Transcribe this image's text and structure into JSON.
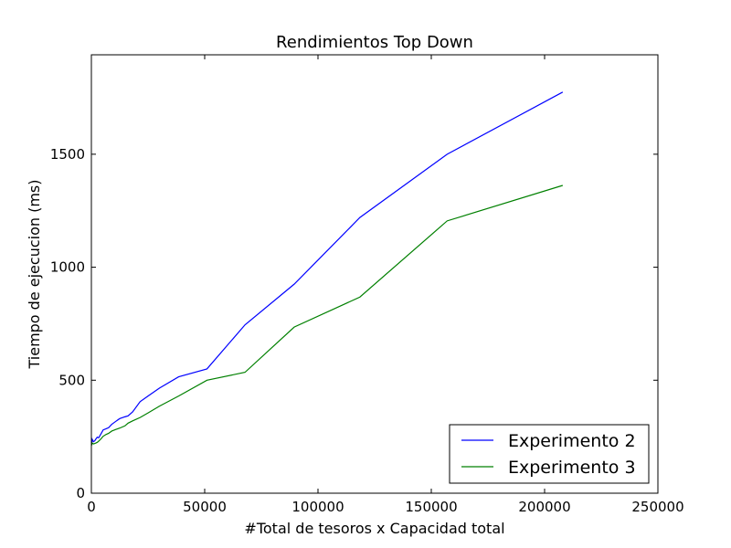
{
  "chart_data": {
    "type": "line",
    "title": "Rendimientos Top Down",
    "xlabel": "#Total de tesoros x Capacidad total",
    "ylabel": "Tiempo de ejecucion (ms)",
    "xlim": [
      0,
      250000
    ],
    "ylim": [
      0,
      1940
    ],
    "x_ticks": [
      0,
      50000,
      100000,
      150000,
      200000,
      250000
    ],
    "x_tick_labels": [
      "0",
      "50000",
      "100000",
      "150000",
      "200000",
      "250000"
    ],
    "y_ticks": [
      0,
      500,
      1000,
      1500
    ],
    "y_tick_labels": [
      "0",
      "500",
      "1000",
      "1500"
    ],
    "grid": false,
    "legend_position": "lower-right",
    "series": [
      {
        "name": "Experimento 2",
        "color": "#0000ff",
        "x": [
          0,
          400,
          900,
          1500,
          2000,
          2600,
          3200,
          4200,
          5200,
          6500,
          7600,
          9000,
          10800,
          12500,
          14800,
          16200,
          18200,
          21500,
          25000,
          30000,
          38500,
          51000,
          67800,
          89500,
          118500,
          157000,
          208000
        ],
        "y": [
          215,
          238,
          228,
          232,
          240,
          248,
          245,
          262,
          280,
          285,
          290,
          305,
          318,
          330,
          338,
          342,
          360,
          405,
          430,
          465,
          515,
          550,
          745,
          925,
          1220,
          1500,
          1775
        ]
      },
      {
        "name": "Experimento 3",
        "color": "#008000",
        "x": [
          0,
          400,
          900,
          1500,
          2000,
          2600,
          3200,
          4200,
          5200,
          6500,
          7600,
          9000,
          10800,
          12500,
          14800,
          16200,
          18200,
          21500,
          25000,
          30000,
          38500,
          51000,
          67800,
          89500,
          118500,
          157000,
          208000
        ],
        "y": [
          210,
          222,
          218,
          220,
          222,
          225,
          230,
          240,
          252,
          260,
          265,
          275,
          282,
          288,
          298,
          310,
          320,
          335,
          355,
          385,
          430,
          500,
          535,
          735,
          868,
          1205,
          1362
        ]
      }
    ]
  }
}
